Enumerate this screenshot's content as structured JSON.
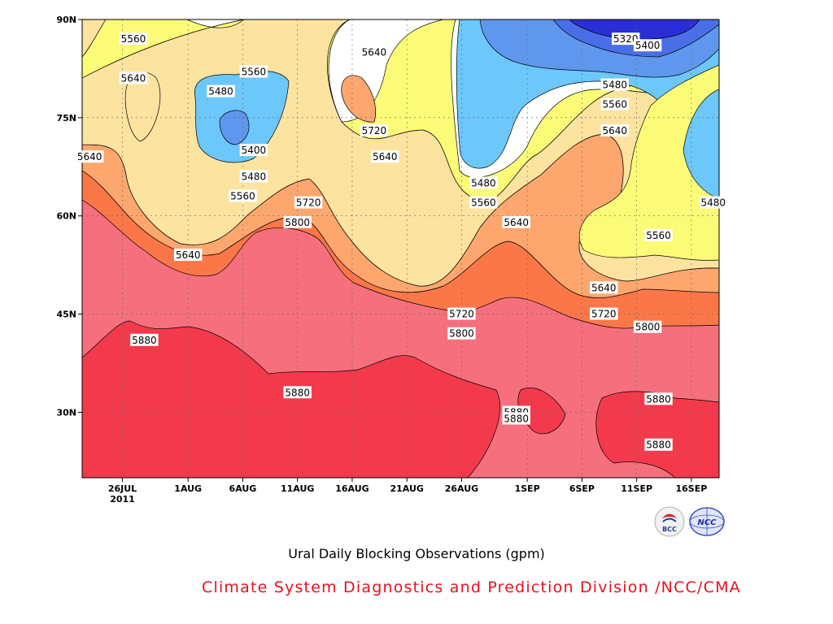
{
  "chart_data": {
    "type": "heatmap",
    "title": "Ural Daily Blocking Observations (gpm)",
    "y_tick_labels": [
      "90N",
      "75N",
      "60N",
      "45N",
      "30N"
    ],
    "x_tick_labels": [
      "26JUL",
      "1AUG",
      "6AUG",
      "11AUG",
      "16AUG",
      "21AUG",
      "26AUG",
      "1SEP",
      "6SEP",
      "11SEP",
      "16SEP"
    ],
    "x_year_label": "2011",
    "ylim": [
      20,
      90
    ],
    "contour_levels": [
      5320,
      5400,
      5480,
      5560,
      5640,
      5720,
      5800,
      5880
    ],
    "fill_colors": {
      "below_5320": "#2a2ed6",
      "5320_5400": "#4a6ee8",
      "5400_5480": "#5f97ee",
      "5480_5560": "#6cc7fa",
      "5560_5640": "#fbfb78",
      "5640_5720": "#fde3a0",
      "5720_5800": "#fda66e",
      "5800_5880": "#fc7748",
      "above_5880": "#f56f7d",
      "max": "#f23a4c"
    },
    "contour_labels": [
      {
        "text": "5560",
        "x": "27JUL",
        "y": 87
      },
      {
        "text": "5560",
        "x": "7AUG",
        "y": 82
      },
      {
        "text": "5640",
        "x": "27JUL",
        "y": 81
      },
      {
        "text": "5480",
        "x": "4AUG",
        "y": 79
      },
      {
        "text": "5640",
        "x": "18AUG",
        "y": 85
      },
      {
        "text": "5720",
        "x": "18AUG",
        "y": 73
      },
      {
        "text": "5640",
        "x": "19AUG",
        "y": 69
      },
      {
        "text": "5400",
        "x": "7AUG",
        "y": 70
      },
      {
        "text": "5480",
        "x": "7AUG",
        "y": 66
      },
      {
        "text": "5560",
        "x": "6AUG",
        "y": 63
      },
      {
        "text": "5640",
        "x": "23JUL",
        "y": 69
      },
      {
        "text": "5720",
        "x": "12AUG",
        "y": 62
      },
      {
        "text": "5800",
        "x": "11AUG",
        "y": 59
      },
      {
        "text": "5640",
        "x": "1AUG",
        "y": 54
      },
      {
        "text": "5320",
        "x": "10SEP",
        "y": 87
      },
      {
        "text": "5400",
        "x": "12SEP",
        "y": 86
      },
      {
        "text": "5480",
        "x": "9SEP",
        "y": 80
      },
      {
        "text": "5560",
        "x": "9SEP",
        "y": 77
      },
      {
        "text": "5640",
        "x": "9SEP",
        "y": 73
      },
      {
        "text": "5480",
        "x": "28AUG",
        "y": 65
      },
      {
        "text": "5560",
        "x": "28AUG",
        "y": 62
      },
      {
        "text": "5640",
        "x": "31AUG",
        "y": 59
      },
      {
        "text": "5560",
        "x": "13SEP",
        "y": 57
      },
      {
        "text": "5480",
        "x": "18SEP",
        "y": 62
      },
      {
        "text": "5640",
        "x": "8SEP",
        "y": 49
      },
      {
        "text": "5720",
        "x": "26AUG",
        "y": 45
      },
      {
        "text": "5720",
        "x": "8SEP",
        "y": 45
      },
      {
        "text": "5800",
        "x": "26AUG",
        "y": 42
      },
      {
        "text": "5800",
        "x": "12SEP",
        "y": 43
      },
      {
        "text": "5880",
        "x": "28JUL",
        "y": 41
      },
      {
        "text": "5880",
        "x": "11AUG",
        "y": 33
      },
      {
        "text": "5880",
        "x": "31AUG",
        "y": 30
      },
      {
        "text": "5880",
        "x": "31AUG",
        "y": 29
      },
      {
        "text": "5880",
        "x": "13SEP",
        "y": 32
      },
      {
        "text": "5880",
        "x": "13SEP",
        "y": 25
      }
    ]
  },
  "captions": {
    "title": "Ural Daily Blocking Observations (gpm)",
    "credit": "Climate System Diagnostics and Prediction Division /NCC/CMA"
  },
  "logos": [
    {
      "name": "bcc-logo",
      "text": "BCC"
    },
    {
      "name": "ncc-logo",
      "text": "NCC"
    }
  ]
}
